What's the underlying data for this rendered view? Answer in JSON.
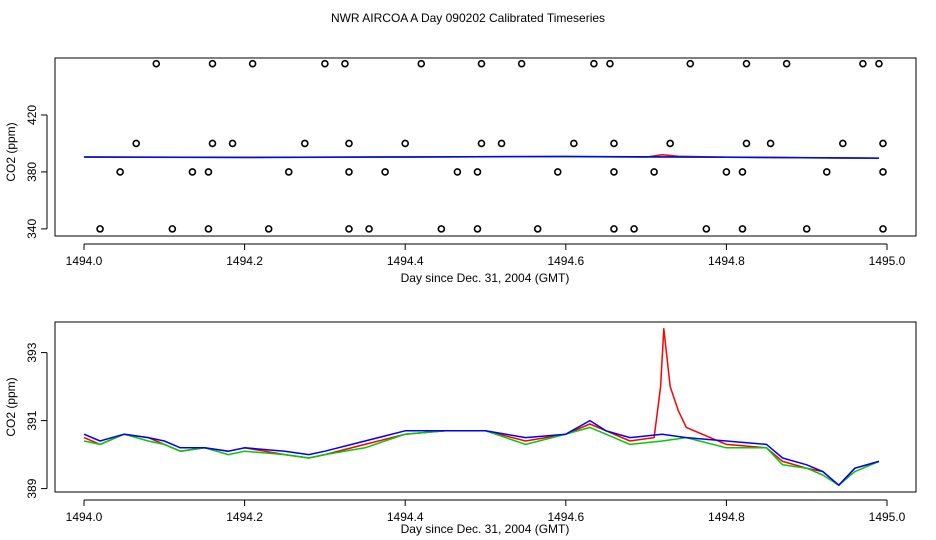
{
  "title": "NWR AIRCOA A  Day 090202  Calibrated Timeseries",
  "colors": {
    "red": "#ff0000",
    "green": "#00cc00",
    "blue": "#0000ff"
  },
  "chart_data": [
    {
      "type": "line",
      "xlabel": "Day since Dec. 31, 2004 (GMT)",
      "ylabel": "CO2 (ppm)",
      "xlim": [
        1494.0,
        1495.0
      ],
      "ylim": [
        335,
        460
      ],
      "xticks": [
        "1494.0",
        "1494.2",
        "1494.4",
        "1494.6",
        "1494.8",
        "1495.0"
      ],
      "yticks": [
        "340",
        "380",
        "420"
      ],
      "ytick_values": [
        340,
        380,
        420
      ],
      "series": [
        {
          "name": "red",
          "color": "red",
          "x": [
            1494.0,
            1494.2,
            1494.4,
            1494.6,
            1494.7,
            1494.72,
            1494.74,
            1494.8,
            1494.99
          ],
          "y": [
            390.5,
            390.2,
            390.5,
            390.8,
            390.4,
            392.0,
            391.0,
            390.3,
            389.6
          ]
        },
        {
          "name": "green",
          "color": "green",
          "x": [
            1494.0,
            1494.2,
            1494.4,
            1494.6,
            1494.8,
            1494.99
          ],
          "y": [
            390.4,
            390.1,
            390.5,
            390.7,
            390.3,
            389.6
          ]
        },
        {
          "name": "blue",
          "color": "blue",
          "x": [
            1494.0,
            1494.2,
            1494.4,
            1494.6,
            1494.8,
            1494.99
          ],
          "y": [
            390.5,
            390.2,
            390.5,
            390.8,
            390.4,
            389.7
          ]
        }
      ],
      "markers": {
        "name": "calibration points",
        "levels": [
          {
            "y": 340,
            "x": [
              1494.02,
              1494.11,
              1494.155,
              1494.23,
              1494.33,
              1494.355,
              1494.445,
              1494.49,
              1494.565,
              1494.66,
              1494.685,
              1494.775,
              1494.82,
              1494.9,
              1494.995
            ]
          },
          {
            "y": 380,
            "x": [
              1494.045,
              1494.135,
              1494.155,
              1494.255,
              1494.33,
              1494.375,
              1494.465,
              1494.49,
              1494.59,
              1494.66,
              1494.71,
              1494.8,
              1494.82,
              1494.925,
              1494.995
            ]
          },
          {
            "y": 400,
            "x": [
              1494.065,
              1494.16,
              1494.185,
              1494.275,
              1494.33,
              1494.4,
              1494.495,
              1494.52,
              1494.61,
              1494.66,
              1494.73,
              1494.825,
              1494.855,
              1494.945,
              1494.995
            ]
          },
          {
            "y": 456,
            "x": [
              1494.09,
              1494.16,
              1494.21,
              1494.3,
              1494.325,
              1494.42,
              1494.495,
              1494.545,
              1494.635,
              1494.655,
              1494.755,
              1494.825,
              1494.875,
              1494.97,
              1494.99
            ]
          }
        ]
      }
    },
    {
      "type": "line",
      "xlabel": "Day since Dec. 31, 2004 (GMT)",
      "ylabel": "CO2 (ppm)",
      "xlim": [
        1494.0,
        1495.0
      ],
      "ylim": [
        388.9,
        393.9
      ],
      "xticks": [
        "1494.0",
        "1494.2",
        "1494.4",
        "1494.6",
        "1494.8",
        "1495.0"
      ],
      "yticks": [
        "389",
        "391",
        "393"
      ],
      "ytick_values": [
        389,
        391,
        393
      ],
      "series": [
        {
          "name": "red",
          "color": "red",
          "x": [
            1494.0,
            1494.02,
            1494.05,
            1494.08,
            1494.1,
            1494.12,
            1494.15,
            1494.18,
            1494.2,
            1494.25,
            1494.28,
            1494.3,
            1494.35,
            1494.4,
            1494.45,
            1494.5,
            1494.55,
            1494.6,
            1494.63,
            1494.65,
            1494.68,
            1494.71,
            1494.718,
            1494.722,
            1494.73,
            1494.74,
            1494.75,
            1494.8,
            1494.85,
            1494.87,
            1494.9,
            1494.92,
            1494.94,
            1494.96,
            1494.99
          ],
          "y": [
            390.5,
            390.3,
            390.6,
            390.5,
            390.3,
            390.1,
            390.2,
            390.1,
            390.2,
            390.0,
            389.9,
            390.0,
            390.3,
            390.6,
            390.7,
            390.7,
            390.4,
            390.6,
            390.9,
            390.7,
            390.4,
            390.5,
            392.0,
            393.7,
            392.0,
            391.3,
            390.8,
            390.3,
            390.2,
            389.8,
            389.6,
            389.5,
            389.1,
            389.6,
            389.8
          ]
        },
        {
          "name": "green",
          "color": "green",
          "x": [
            1494.0,
            1494.02,
            1494.05,
            1494.08,
            1494.1,
            1494.12,
            1494.15,
            1494.18,
            1494.2,
            1494.25,
            1494.28,
            1494.3,
            1494.35,
            1494.4,
            1494.45,
            1494.5,
            1494.55,
            1494.6,
            1494.63,
            1494.65,
            1494.68,
            1494.72,
            1494.75,
            1494.8,
            1494.85,
            1494.87,
            1494.9,
            1494.92,
            1494.94,
            1494.96,
            1494.99
          ],
          "y": [
            390.4,
            390.3,
            390.6,
            390.4,
            390.3,
            390.1,
            390.2,
            390.0,
            390.1,
            390.0,
            389.9,
            390.0,
            390.2,
            390.6,
            390.7,
            390.7,
            390.3,
            390.6,
            390.8,
            390.6,
            390.3,
            390.4,
            390.5,
            390.2,
            390.2,
            389.7,
            389.6,
            389.4,
            389.1,
            389.5,
            389.8
          ]
        },
        {
          "name": "blue",
          "color": "blue",
          "x": [
            1494.0,
            1494.02,
            1494.05,
            1494.08,
            1494.1,
            1494.12,
            1494.15,
            1494.18,
            1494.2,
            1494.25,
            1494.28,
            1494.3,
            1494.35,
            1494.4,
            1494.45,
            1494.5,
            1494.55,
            1494.6,
            1494.63,
            1494.65,
            1494.68,
            1494.72,
            1494.75,
            1494.8,
            1494.85,
            1494.87,
            1494.9,
            1494.92,
            1494.94,
            1494.96,
            1494.99
          ],
          "y": [
            390.6,
            390.4,
            390.6,
            390.5,
            390.4,
            390.2,
            390.2,
            390.1,
            390.2,
            390.1,
            390.0,
            390.1,
            390.4,
            390.7,
            390.7,
            390.7,
            390.5,
            390.6,
            391.0,
            390.7,
            390.5,
            390.6,
            390.5,
            390.4,
            390.3,
            389.9,
            389.7,
            389.5,
            389.1,
            389.6,
            389.8
          ]
        }
      ]
    }
  ]
}
